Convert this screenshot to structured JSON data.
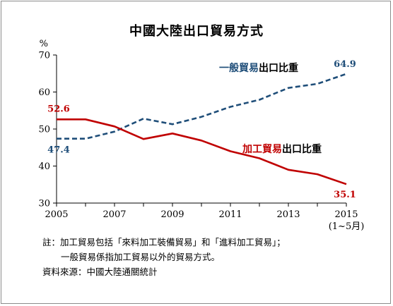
{
  "chart_data": {
    "type": "line",
    "title": "中國大陸出口貿易方式",
    "y_unit": "%",
    "ylim": [
      30,
      70
    ],
    "y_ticks": [
      30,
      40,
      50,
      60,
      70
    ],
    "xlim": [
      2005,
      2015
    ],
    "x_ticks": [
      2005,
      2007,
      2009,
      2011,
      2013,
      2015
    ],
    "x_tick_sublabel": "(1~5月)",
    "grid": false,
    "series": [
      {
        "name": "一般貿易出口比重",
        "name_colored": "一般貿易",
        "name_plain": "出口比重",
        "style": "dashed",
        "color": "#1f4e79",
        "x": [
          2005,
          2006,
          2007,
          2008,
          2009,
          2010,
          2011,
          2012,
          2013,
          2014,
          2015
        ],
        "values": [
          47.4,
          47.4,
          49.3,
          52.8,
          51.3,
          53.3,
          56.0,
          57.9,
          61.1,
          62.2,
          64.9
        ]
      },
      {
        "name": "加工貿易出口比重",
        "name_colored": "加工貿易",
        "name_plain": "出口比重",
        "style": "solid",
        "color": "#c00000",
        "x": [
          2005,
          2006,
          2007,
          2008,
          2009,
          2010,
          2011,
          2012,
          2013,
          2014,
          2015
        ],
        "values": [
          52.6,
          52.6,
          50.7,
          47.3,
          48.8,
          46.9,
          44.0,
          42.1,
          39.0,
          37.8,
          35.1
        ]
      }
    ],
    "data_labels": [
      {
        "text": "52.6",
        "color": "#c00000"
      },
      {
        "text": "47.4",
        "color": "#1f4e79"
      },
      {
        "text": "64.9",
        "color": "#1f4e79"
      },
      {
        "text": "35.1",
        "color": "#c00000"
      }
    ]
  },
  "notes": {
    "line1": "註：加工貿易包括「來料加工裝備貿易」和「進料加工貿易」；",
    "line2": "一般貿易係指加工貿易以外的貿易方式。",
    "line3": "資料來源：中國大陸通關統計"
  }
}
